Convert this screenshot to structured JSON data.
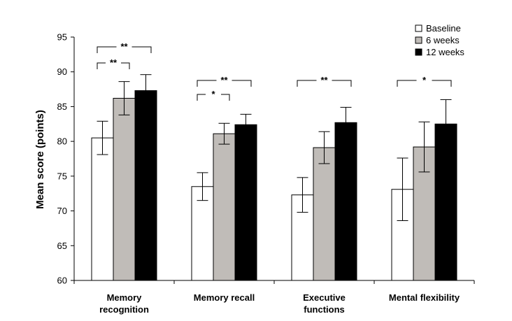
{
  "chart_data": {
    "type": "bar",
    "title": "",
    "xlabel": "",
    "ylabel": "Mean score (points)",
    "ylim": [
      60,
      95
    ],
    "yticks": [
      60,
      65,
      70,
      75,
      80,
      85,
      90,
      95
    ],
    "grid": false,
    "legend_position": "top-right",
    "categories": [
      [
        "Memory",
        "recognition"
      ],
      [
        "Memory recall"
      ],
      [
        "Executive",
        "functions"
      ],
      [
        "Mental flexibility"
      ]
    ],
    "series": [
      {
        "name": "Baseline",
        "color": "#ffffff",
        "values": [
          80.5,
          73.5,
          72.3,
          73.1
        ],
        "errors": [
          2.4,
          2.0,
          2.5,
          4.5
        ]
      },
      {
        "name": "6 weeks",
        "color": "#c0bcb8",
        "values": [
          86.2,
          81.1,
          79.1,
          79.2
        ],
        "errors": [
          2.4,
          1.5,
          2.3,
          3.6
        ]
      },
      {
        "name": "12 weeks",
        "color": "#000000",
        "values": [
          87.3,
          82.4,
          82.7,
          82.5
        ],
        "errors": [
          2.3,
          1.5,
          2.2,
          3.5
        ]
      }
    ],
    "significance": [
      {
        "category": 0,
        "from": 0,
        "to": 2,
        "label": "**",
        "level": 2
      },
      {
        "category": 0,
        "from": 0,
        "to": 1,
        "label": "**",
        "level": 1
      },
      {
        "category": 1,
        "from": 0,
        "to": 2,
        "label": "**",
        "level": 2
      },
      {
        "category": 1,
        "from": 0,
        "to": 1,
        "label": "*",
        "level": 1
      },
      {
        "category": 2,
        "from": 0,
        "to": 2,
        "label": "**",
        "level": 1
      },
      {
        "category": 3,
        "from": 0,
        "to": 2,
        "label": "*",
        "level": 1
      }
    ]
  }
}
